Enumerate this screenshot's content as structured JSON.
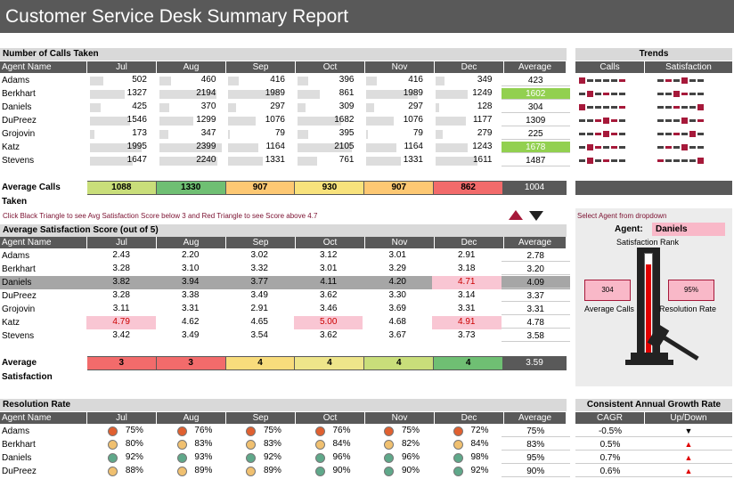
{
  "title": "Customer Service Desk Summary Report",
  "months": [
    "Jul",
    "Aug",
    "Sep",
    "Oct",
    "Nov",
    "Dec"
  ],
  "agent_header": "Agent Name",
  "average_header": "Average",
  "calls": {
    "section_title": "Number of Calls Taken",
    "rows": [
      {
        "name": "Adams",
        "vals": [
          "502",
          "460",
          "416",
          "396",
          "416",
          "349"
        ],
        "avg": "423"
      },
      {
        "name": "Berkhart",
        "vals": [
          "1327",
          "2194",
          "1989",
          "861",
          "1989",
          "1249"
        ],
        "avg": "1602"
      },
      {
        "name": "Daniels",
        "vals": [
          "425",
          "370",
          "297",
          "309",
          "297",
          "128"
        ],
        "avg": "304"
      },
      {
        "name": "DuPreez",
        "vals": [
          "1546",
          "1299",
          "1076",
          "1682",
          "1076",
          "1177"
        ],
        "avg": "1309"
      },
      {
        "name": "Grojovin",
        "vals": [
          "173",
          "347",
          "79",
          "395",
          "79",
          "279"
        ],
        "avg": "225"
      },
      {
        "name": "Katz",
        "vals": [
          "1995",
          "2399",
          "1164",
          "2105",
          "1164",
          "1243"
        ],
        "avg": "1678"
      },
      {
        "name": "Stevens",
        "vals": [
          "1647",
          "2240",
          "1331",
          "761",
          "1331",
          "1611"
        ],
        "avg": "1487"
      }
    ],
    "summary_label": "Average Calls Taken",
    "summary": [
      "1088",
      "1330",
      "907",
      "930",
      "907",
      "862"
    ],
    "summary_avg": "1004"
  },
  "trends": {
    "title": "Trends",
    "col_calls": "Calls",
    "col_satisfaction": "Satisfaction"
  },
  "instruction": "Click Black Triangle to see Avg Satisfaction Score below 3 and Red Triangle to see Score above 4.7",
  "satisfaction": {
    "section_title": "Average Satisfaction Score (out of 5)",
    "rows": [
      {
        "name": "Adams",
        "vals": [
          "2.43",
          "2.20",
          "3.02",
          "3.12",
          "3.01",
          "2.91"
        ],
        "avg": "2.78"
      },
      {
        "name": "Berkhart",
        "vals": [
          "3.28",
          "3.10",
          "3.32",
          "3.01",
          "3.29",
          "3.18"
        ],
        "avg": "3.20"
      },
      {
        "name": "Daniels",
        "vals": [
          "3.82",
          "3.94",
          "3.77",
          "4.11",
          "4.20",
          "4.71"
        ],
        "avg": "4.09"
      },
      {
        "name": "DuPreez",
        "vals": [
          "3.28",
          "3.38",
          "3.49",
          "3.62",
          "3.30",
          "3.14"
        ],
        "avg": "3.37"
      },
      {
        "name": "Grojovin",
        "vals": [
          "3.11",
          "3.31",
          "2.91",
          "3.46",
          "3.69",
          "3.31"
        ],
        "avg": "3.31"
      },
      {
        "name": "Katz",
        "vals": [
          "4.79",
          "4.62",
          "4.65",
          "5.00",
          "4.68",
          "4.91"
        ],
        "avg": "4.78"
      },
      {
        "name": "Stevens",
        "vals": [
          "3.42",
          "3.49",
          "3.54",
          "3.62",
          "3.67",
          "3.73"
        ],
        "avg": "3.58"
      }
    ],
    "summary_label": "Average Satisfaction",
    "summary": [
      "3",
      "3",
      "4",
      "4",
      "4",
      "4"
    ],
    "summary_avg": "3.59"
  },
  "agent_panel": {
    "select_label": "Select Agent from dropdown",
    "agent_label": "Agent:",
    "agent_value": "Daniels",
    "rank_label": "Satisfaction Rank",
    "avg_calls_value": "304",
    "avg_calls_label": "Average Calls",
    "resolution_value": "95%",
    "resolution_label": "Resolution Rate",
    "rank_fill_fraction": 0.9
  },
  "resolution": {
    "section_title": "Resolution Rate",
    "rows": [
      {
        "name": "Adams",
        "vals": [
          "75%",
          "76%",
          "75%",
          "76%",
          "75%",
          "72%"
        ],
        "avg": "75%"
      },
      {
        "name": "Berkhart",
        "vals": [
          "80%",
          "83%",
          "83%",
          "84%",
          "82%",
          "84%"
        ],
        "avg": "83%"
      },
      {
        "name": "Daniels",
        "vals": [
          "92%",
          "93%",
          "92%",
          "96%",
          "96%",
          "98%"
        ],
        "avg": "95%"
      },
      {
        "name": "DuPreez",
        "vals": [
          "88%",
          "89%",
          "89%",
          "90%",
          "90%",
          "92%"
        ],
        "avg": "90%"
      }
    ]
  },
  "growth": {
    "title": "Consistent Annual Growth Rate",
    "col_cagr": "CAGR",
    "col_updown": "Up/Down",
    "rows": [
      {
        "cagr": "-0.5%",
        "dir": "▼"
      },
      {
        "cagr": "0.5%",
        "dir": "▲"
      },
      {
        "cagr": "0.7%",
        "dir": "▲"
      },
      {
        "cagr": "0.6%",
        "dir": "▲"
      }
    ]
  },
  "colors": {
    "header_gray": "#595959",
    "green": "#92d050",
    "red_tri": "#a6193a",
    "pink": "#f9b8c8"
  }
}
